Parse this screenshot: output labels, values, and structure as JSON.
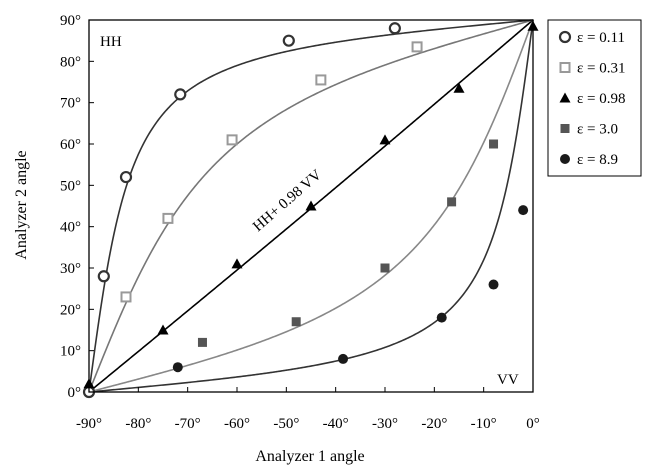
{
  "chart_data": {
    "type": "scatter",
    "xlabel": "Analyzer 1 angle",
    "ylabel": "Analyzer 2 angle",
    "xlim": [
      -90,
      0
    ],
    "ylim": [
      0,
      90
    ],
    "x_ticks": [
      -90,
      -80,
      -70,
      -60,
      -50,
      -40,
      -30,
      -20,
      -10,
      0
    ],
    "y_ticks": [
      0,
      10,
      20,
      30,
      40,
      50,
      60,
      70,
      80,
      90
    ],
    "x_tick_labels": [
      "-90°",
      "-80°",
      "-70°",
      "-60°",
      "-50°",
      "-40°",
      "-30°",
      "-20°",
      "-10°",
      "0°"
    ],
    "y_tick_labels": [
      "0°",
      "10°",
      "20°",
      "30°",
      "40°",
      "50°",
      "60°",
      "70°",
      "80°",
      "90°"
    ],
    "corner_labels": {
      "top_left": "HH",
      "bottom_right": "VV"
    },
    "annotation": "HH+ 0.98 VV",
    "legend_position": "right, outside plot",
    "grid": false,
    "series": [
      {
        "name": "ε = 0.11",
        "epsilon": 0.11,
        "marker": "open-circle",
        "color": "#333333",
        "curve_color": "#333333",
        "x": [
          -90,
          -87,
          -82.5,
          -71.5,
          -49.5,
          -28
        ],
        "y": [
          0,
          28,
          52,
          72,
          85,
          88
        ]
      },
      {
        "name": "ε = 0.31",
        "epsilon": 0.31,
        "marker": "open-square",
        "color": "#999999",
        "curve_color": "#888888",
        "x": [
          -82.5,
          -74,
          -61,
          -43,
          -23.5
        ],
        "y": [
          23,
          42,
          61,
          75.5,
          83.5
        ]
      },
      {
        "name": "ε = 0.98",
        "epsilon": 0.98,
        "marker": "filled-triangle",
        "color": "#000000",
        "curve_color": "#000000",
        "x": [
          -90,
          -75,
          -60,
          -45,
          -30,
          -15,
          0
        ],
        "y": [
          2,
          15,
          31,
          45,
          61,
          73.5,
          88.5
        ]
      },
      {
        "name": "ε = 3.0",
        "epsilon": 3.0,
        "marker": "filled-square",
        "color": "#555555",
        "curve_color": "#777777",
        "x": [
          -67,
          -48,
          -30,
          -16.5,
          -8
        ],
        "y": [
          12,
          17,
          30,
          46,
          60
        ]
      },
      {
        "name": "ε = 8.9",
        "epsilon": 8.9,
        "marker": "filled-circle",
        "color": "#1a1a1a",
        "curve_color": "#333333",
        "x": [
          -72,
          -38.5,
          -18.5,
          -8,
          -2
        ],
        "y": [
          6,
          8,
          18,
          26,
          44
        ]
      }
    ]
  }
}
